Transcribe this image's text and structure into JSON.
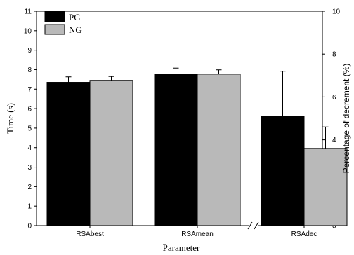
{
  "chart_data": {
    "type": "bar",
    "categories": [
      "RSAbest",
      "RSAmean",
      "RSAdec"
    ],
    "xlabel": "Parameter",
    "ylabel": "Time (s)",
    "ylabel_right": "Percentage of decrement (%)",
    "ylim": [
      0,
      11
    ],
    "ylim_right": [
      0,
      10
    ],
    "yticks": [
      0,
      1,
      2,
      3,
      4,
      5,
      6,
      7,
      8,
      9,
      10,
      11
    ],
    "yticks_right": [
      0,
      2,
      4,
      6,
      8,
      10
    ],
    "axis_break_before": "RSAdec",
    "legend_position": "top-left",
    "grid": false,
    "series": [
      {
        "name": "PG",
        "color": "#000000",
        "values": [
          7.35,
          7.78,
          5.1
        ],
        "errors": [
          0.28,
          0.3,
          2.1
        ],
        "axis": [
          "left",
          "left",
          "right"
        ]
      },
      {
        "name": "NG",
        "color": "#b9b9b9",
        "values": [
          7.45,
          7.77,
          3.6
        ],
        "errors": [
          0.2,
          0.22,
          1.0
        ],
        "axis": [
          "left",
          "left",
          "right"
        ]
      }
    ]
  }
}
